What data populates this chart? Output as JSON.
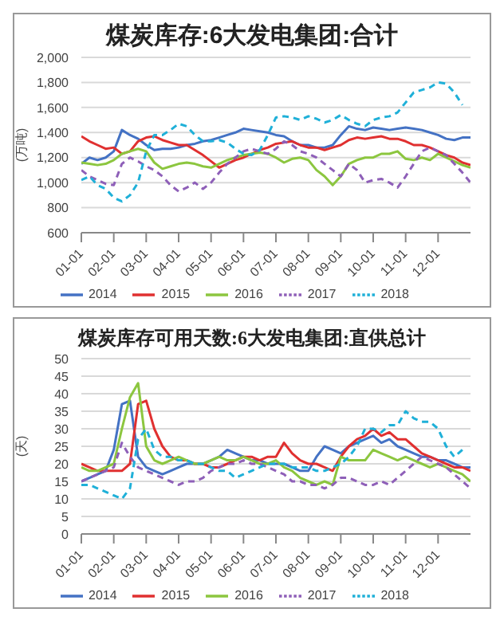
{
  "chart_data": [
    {
      "type": "line",
      "title": "煤炭库存:6大发电集团:合计",
      "ylabel": "(万吨)",
      "categories": [
        "01-01",
        null,
        null,
        null,
        "02-01",
        null,
        null,
        null,
        "03-01",
        null,
        null,
        null,
        "04-01",
        null,
        null,
        null,
        "05-01",
        null,
        null,
        null,
        "06-01",
        null,
        null,
        null,
        "07-01",
        null,
        null,
        null,
        "08-01",
        null,
        null,
        null,
        "09-01",
        null,
        null,
        null,
        "10-01",
        null,
        null,
        null,
        "11-01",
        null,
        null,
        null,
        "12-01",
        null,
        null,
        null,
        null
      ],
      "ylim": [
        600,
        2000
      ],
      "yticks": [
        {
          "value": 600,
          "label": "600"
        },
        {
          "value": 800,
          "label": "800"
        },
        {
          "value": 1000,
          "label": "1,000"
        },
        {
          "value": 1200,
          "label": "1,200"
        },
        {
          "value": 1400,
          "label": "1,400"
        },
        {
          "value": 1600,
          "label": "1,600"
        },
        {
          "value": 1800,
          "label": "1,800"
        },
        {
          "value": 2000,
          "label": "2,000"
        }
      ],
      "grid": "y",
      "legend": "bottom",
      "marker": "none",
      "series": [
        {
          "name": "2014",
          "color": "#4472c4",
          "line_style": "solid",
          "values": [
            1150,
            1200,
            1180,
            1200,
            1250,
            1420,
            1380,
            1350,
            1300,
            1260,
            1270,
            1270,
            1280,
            1300,
            1310,
            1330,
            1340,
            1360,
            1380,
            1400,
            1430,
            1420,
            1410,
            1400,
            1380,
            1370,
            1330,
            1300,
            1300,
            1280,
            1280,
            1300,
            1380,
            1450,
            1430,
            1420,
            1440,
            1430,
            1420,
            1430,
            1440,
            1430,
            1420,
            1400,
            1380,
            1350,
            1340,
            1360,
            1360
          ]
        },
        {
          "name": "2015",
          "color": "#e03030",
          "line_style": "solid",
          "values": [
            1370,
            1330,
            1300,
            1270,
            1280,
            1230,
            1250,
            1330,
            1360,
            1370,
            1340,
            1320,
            1300,
            1300,
            1260,
            1220,
            1170,
            1120,
            1150,
            1180,
            1200,
            1230,
            1260,
            1280,
            1310,
            1320,
            1330,
            1300,
            1280,
            1280,
            1260,
            1280,
            1300,
            1340,
            1360,
            1350,
            1360,
            1370,
            1350,
            1350,
            1330,
            1300,
            1300,
            1280,
            1250,
            1220,
            1200,
            1160,
            1140
          ]
        },
        {
          "name": "2016",
          "color": "#8cc63f",
          "line_style": "solid",
          "values": [
            1160,
            1150,
            1140,
            1150,
            1180,
            1230,
            1250,
            1270,
            1250,
            1160,
            1110,
            1130,
            1150,
            1160,
            1150,
            1130,
            1120,
            1150,
            1180,
            1200,
            1220,
            1230,
            1240,
            1230,
            1200,
            1160,
            1190,
            1200,
            1180,
            1100,
            1050,
            980,
            1050,
            1150,
            1180,
            1200,
            1200,
            1230,
            1230,
            1250,
            1190,
            1180,
            1200,
            1180,
            1230,
            1200,
            1170,
            1140,
            1120
          ]
        },
        {
          "name": "2017",
          "color": "#8e5fb8",
          "line_style": "dashed",
          "values": [
            1100,
            1050,
            1020,
            990,
            980,
            1150,
            1200,
            1170,
            1130,
            1100,
            1050,
            980,
            930,
            960,
            1000,
            950,
            1000,
            1080,
            1150,
            1200,
            1250,
            1270,
            1250,
            1230,
            1270,
            1330,
            1300,
            1250,
            1230,
            1200,
            1150,
            1100,
            1050,
            1150,
            1100,
            1000,
            1020,
            1030,
            1000,
            960,
            1050,
            1150,
            1250,
            1280,
            1250,
            1220,
            1150,
            1080,
            1000
          ]
        },
        {
          "name": "2018",
          "color": "#1fb0d8",
          "line_style": "dashed",
          "values": [
            1020,
            1050,
            980,
            950,
            880,
            850,
            900,
            1000,
            1250,
            1380,
            1380,
            1420,
            1470,
            1450,
            1380,
            1330,
            1330,
            1340,
            1320,
            1270,
            1230,
            1220,
            1260,
            1380,
            1520,
            1530,
            1520,
            1500,
            1530,
            1510,
            1480,
            1500,
            1540,
            1500,
            1470,
            1450,
            1500,
            1520,
            1530,
            1560,
            1640,
            1720,
            1740,
            1760,
            1800,
            1790,
            1720,
            1620,
            null
          ]
        }
      ]
    },
    {
      "type": "line",
      "title": "煤炭库存可用天数:6大发电集团:直供总计",
      "ylabel": "(天)",
      "categories": [
        "01-01",
        null,
        null,
        null,
        "02-01",
        null,
        null,
        null,
        "03-01",
        null,
        null,
        null,
        "04-01",
        null,
        null,
        null,
        "05-01",
        null,
        null,
        null,
        "06-01",
        null,
        null,
        null,
        "07-01",
        null,
        null,
        null,
        "08-01",
        null,
        null,
        null,
        "09-01",
        null,
        null,
        null,
        "10-01",
        null,
        null,
        null,
        "11-01",
        null,
        null,
        null,
        "12-01",
        null,
        null,
        null,
        null
      ],
      "ylim": [
        0,
        50
      ],
      "yticks": [
        0,
        5,
        10,
        15,
        20,
        25,
        30,
        35,
        40,
        45,
        50
      ],
      "grid": "y",
      "legend": "bottom",
      "marker": "none",
      "series": [
        {
          "name": "2014",
          "color": "#4472c4",
          "line_style": "solid",
          "values": [
            15,
            16,
            17,
            18,
            24,
            37,
            38,
            22,
            19,
            18,
            17,
            18,
            19,
            20,
            20,
            20,
            21,
            22,
            24,
            23,
            22,
            21,
            21,
            20,
            20,
            20,
            19,
            18,
            18,
            22,
            25,
            24,
            23,
            25,
            26,
            27,
            28,
            26,
            27,
            25,
            24,
            23,
            22,
            22,
            21,
            21,
            20,
            19,
            19
          ]
        },
        {
          "name": "2015",
          "color": "#e03030",
          "line_style": "solid",
          "values": [
            20,
            19,
            18,
            18,
            18,
            18,
            20,
            37,
            38,
            30,
            25,
            22,
            21,
            21,
            20,
            20,
            19,
            19,
            20,
            21,
            22,
            22,
            21,
            22,
            22,
            26,
            23,
            21,
            20,
            20,
            19,
            18,
            22,
            25,
            27,
            28,
            30,
            28,
            29,
            27,
            27,
            25,
            23,
            22,
            21,
            20,
            19,
            19,
            18
          ]
        },
        {
          "name": "2016",
          "color": "#8cc63f",
          "line_style": "solid",
          "values": [
            19,
            18,
            18,
            19,
            20,
            30,
            39,
            43,
            25,
            21,
            20,
            21,
            22,
            21,
            20,
            20,
            21,
            22,
            21,
            21,
            22,
            21,
            20,
            20,
            21,
            19,
            18,
            16,
            15,
            14,
            15,
            14,
            22,
            21,
            21,
            21,
            24,
            23,
            22,
            21,
            22,
            21,
            20,
            19,
            20,
            19,
            18,
            17,
            15
          ]
        },
        {
          "name": "2017",
          "color": "#8e5fb8",
          "line_style": "dashed",
          "values": [
            15,
            16,
            17,
            18,
            19,
            26,
            22,
            19,
            18,
            17,
            16,
            15,
            14,
            15,
            15,
            16,
            18,
            19,
            20,
            20,
            21,
            20,
            20,
            19,
            18,
            17,
            15,
            15,
            14,
            14,
            13,
            14,
            16,
            16,
            15,
            14,
            14,
            15,
            14,
            16,
            18,
            20,
            22,
            21,
            20,
            19,
            17,
            15,
            13
          ]
        },
        {
          "name": "2018",
          "color": "#1fb0d8",
          "line_style": "dashed",
          "values": [
            14,
            14,
            13,
            12,
            11,
            10,
            13,
            27,
            30,
            24,
            22,
            22,
            21,
            21,
            20,
            20,
            19,
            18,
            18,
            16,
            17,
            18,
            19,
            20,
            20,
            20,
            19,
            19,
            19,
            18,
            18,
            19,
            20,
            22,
            25,
            30,
            30,
            29,
            31,
            31,
            35,
            33,
            32,
            32,
            30,
            25,
            22,
            24,
            null
          ]
        }
      ]
    }
  ]
}
